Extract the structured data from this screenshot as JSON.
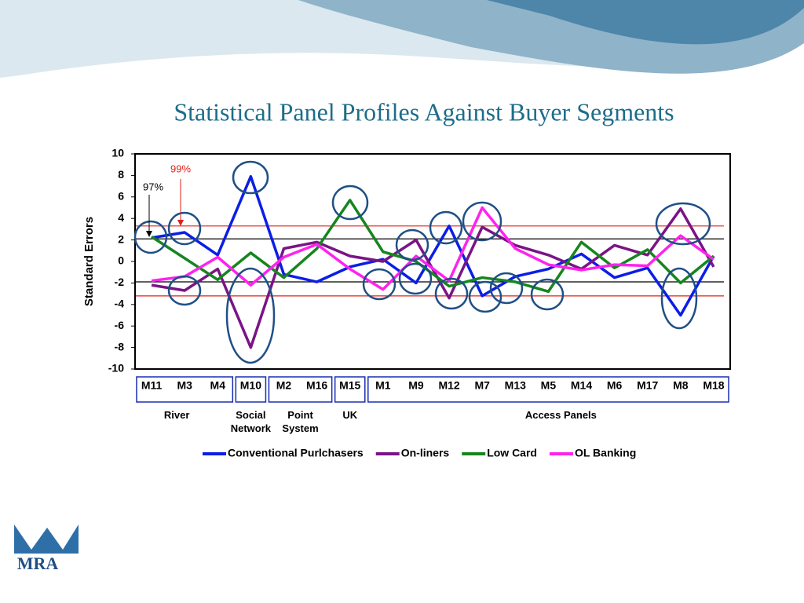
{
  "chart_data": {
    "type": "line",
    "title": "Statistical Panel Profiles Against Buyer Segments",
    "y_label": "Standard Errors",
    "categories": [
      "M11",
      "M3",
      "M4",
      "M10",
      "M2",
      "M16",
      "M15",
      "M1",
      "M9",
      "M12",
      "M7",
      "M13",
      "M5",
      "M14",
      "M6",
      "M17",
      "M8",
      "M18"
    ],
    "series": [
      {
        "name": "Conventional Purlchasers",
        "color": "#0a1ee6",
        "values": [
          2.2,
          2.7,
          0.6,
          7.9,
          -1.2,
          -1.9,
          -0.5,
          0.2,
          -2.0,
          3.3,
          -3.2,
          -1.4,
          -0.7,
          0.7,
          -1.5,
          -0.6,
          -5.0,
          0.5
        ]
      },
      {
        "name": "On-liners",
        "color": "#7a1486",
        "values": [
          -2.2,
          -2.7,
          -0.7,
          -8.0,
          1.2,
          1.8,
          0.5,
          0.0,
          2.0,
          -3.4,
          3.2,
          1.5,
          0.6,
          -0.7,
          1.5,
          0.6,
          4.9,
          -0.5
        ]
      },
      {
        "name": "Low Card",
        "color": "#15861e",
        "values": [
          2.3,
          0.3,
          -1.7,
          0.8,
          -1.5,
          1.2,
          5.7,
          0.9,
          0.0,
          -2.3,
          -1.5,
          -1.9,
          -2.8,
          1.8,
          -0.6,
          1.1,
          -2.0,
          0.5
        ]
      },
      {
        "name": "OL Banking",
        "color": "#ff22ee",
        "values": [
          -1.8,
          -1.4,
          0.4,
          -2.2,
          0.4,
          1.6,
          -0.7,
          -2.6,
          0.5,
          -1.8,
          5.0,
          1.2,
          -0.3,
          -0.8,
          -0.3,
          -0.4,
          2.4,
          0.2
        ]
      }
    ],
    "reference_lines": [
      {
        "value": 3.3,
        "color": "#e0201a"
      },
      {
        "value": 2.1,
        "color": "#000000"
      },
      {
        "value": -1.9,
        "color": "#000000"
      },
      {
        "value": -3.2,
        "color": "#e0201a"
      }
    ],
    "annotations": [
      {
        "text": "97%",
        "color": "#000000"
      },
      {
        "text": "99%",
        "color": "#e0201a"
      }
    ],
    "groups": [
      {
        "label": "River",
        "categories": [
          "M11",
          "M3",
          "M4"
        ]
      },
      {
        "label": "Social Network",
        "categories": [
          "M10"
        ]
      },
      {
        "label": "Point System",
        "categories": [
          "M2",
          "M16"
        ]
      },
      {
        "label": "UK",
        "categories": [
          "M15"
        ]
      },
      {
        "label": "Access Panels",
        "categories": [
          "M1",
          "M9",
          "M12",
          "M7",
          "M13",
          "M5",
          "M14",
          "M6",
          "M17",
          "M8",
          "M18"
        ]
      }
    ],
    "ylim": [
      -10,
      10
    ],
    "yticks": [
      -10,
      -8,
      -6,
      -4,
      -2,
      0,
      2,
      4,
      6,
      8,
      10
    ],
    "grid": false,
    "legend": "bottom",
    "logo": "MRA"
  }
}
